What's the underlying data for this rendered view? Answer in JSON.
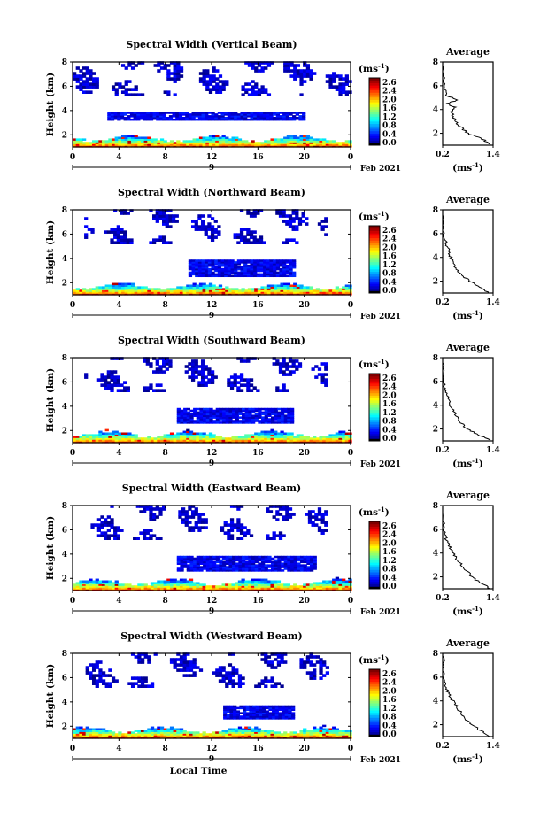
{
  "chart_data": [
    {
      "type": "heatmap",
      "title": "Spectral Width (Vertical Beam)",
      "ylabel": "Height (km)",
      "x_ticks": [
        "0",
        "4",
        "8",
        "12",
        "16",
        "20",
        "0"
      ],
      "day_label": "9",
      "date_label": "Feb 2021",
      "xlim": [
        0,
        24
      ],
      "ylim": [
        1,
        8
      ],
      "y_ticks": [
        "2",
        "4",
        "6",
        "8"
      ],
      "colorbar": {
        "unit": "(ms",
        "unit_exp": "-1",
        "unit_close": ")",
        "ticks": [
          "2.6",
          "2.4",
          "2.0",
          "1.6",
          "1.2",
          "0.8",
          "0.4",
          "0.0"
        ],
        "range": [
          0.0,
          2.8
        ]
      },
      "layers": [
        {
          "y": [
            1.0,
            2.0
          ],
          "x": [
            0,
            24
          ],
          "level": 1.2
        },
        {
          "y": [
            3.2,
            3.8
          ],
          "x": [
            3,
            20
          ],
          "level": 0.3
        },
        {
          "y": [
            5.2,
            7.9
          ],
          "x": [
            0,
            24
          ],
          "level": 0.2,
          "sparse": true
        }
      ],
      "average": {
        "title": "Average",
        "xlabel": "(ms",
        "xlabel_exp": "-1",
        "xlabel_close": ")",
        "x_ticks": [
          "0.2",
          "1.4"
        ],
        "y_ticks": [
          "2",
          "4",
          "6",
          "8"
        ],
        "xlim": [
          0.2,
          1.4
        ],
        "ylim": [
          1,
          8
        ],
        "profile": [
          [
            1.0,
            1.35
          ],
          [
            1.5,
            1.15
          ],
          [
            2.0,
            0.8
          ],
          [
            2.6,
            0.6
          ],
          [
            3.2,
            0.48
          ],
          [
            3.8,
            0.42
          ],
          [
            4.2,
            0.5
          ],
          [
            4.5,
            0.3
          ],
          [
            4.8,
            0.55
          ],
          [
            5.2,
            0.28
          ],
          [
            6.0,
            0.24
          ],
          [
            7.0,
            0.22
          ],
          [
            7.8,
            0.2
          ]
        ]
      }
    },
    {
      "type": "heatmap",
      "title": "Spectral Width (Northward Beam)",
      "ylabel": "Height (km)",
      "x_ticks": [
        "0",
        "4",
        "8",
        "12",
        "16",
        "20",
        "0"
      ],
      "day_label": "9",
      "date_label": "Feb 2021",
      "xlim": [
        0,
        24
      ],
      "ylim": [
        1,
        8
      ],
      "y_ticks": [
        "2",
        "4",
        "6",
        "8"
      ],
      "colorbar": {
        "unit": "(ms",
        "unit_exp": "-1",
        "unit_close": ")",
        "ticks": [
          "2.6",
          "2.4",
          "2.0",
          "1.6",
          "1.2",
          "0.8",
          "0.4",
          "0.0"
        ],
        "range": [
          0.0,
          2.8
        ]
      },
      "layers": [
        {
          "y": [
            1.0,
            2.0
          ],
          "x": [
            0,
            24
          ],
          "level": 1.2
        },
        {
          "y": [
            2.5,
            3.8
          ],
          "x": [
            10,
            19
          ],
          "level": 0.3
        },
        {
          "y": [
            5.2,
            7.9
          ],
          "x": [
            1,
            22
          ],
          "level": 0.2,
          "sparse": true
        }
      ],
      "average": {
        "title": "Average",
        "xlabel": "(ms",
        "xlabel_exp": "-1",
        "xlabel_close": ")",
        "x_ticks": [
          "0.2",
          "1.4"
        ],
        "y_ticks": [
          "2",
          "4",
          "6",
          "8"
        ],
        "xlim": [
          0.2,
          1.4
        ],
        "ylim": [
          1,
          8
        ],
        "profile": [
          [
            1.0,
            1.3
          ],
          [
            1.5,
            1.1
          ],
          [
            2.0,
            0.85
          ],
          [
            2.6,
            0.62
          ],
          [
            3.2,
            0.5
          ],
          [
            3.8,
            0.42
          ],
          [
            4.4,
            0.35
          ],
          [
            5.0,
            0.3
          ],
          [
            5.6,
            0.24
          ],
          [
            6.5,
            0.22
          ],
          [
            7.8,
            0.2
          ]
        ]
      }
    },
    {
      "type": "heatmap",
      "title": "Spectral Width (Southward Beam)",
      "ylabel": "Height (km)",
      "x_ticks": [
        "0",
        "4",
        "8",
        "12",
        "16",
        "20",
        "0"
      ],
      "day_label": "9",
      "date_label": "Feb 2021",
      "xlim": [
        0,
        24
      ],
      "ylim": [
        1,
        8
      ],
      "y_ticks": [
        "2",
        "4",
        "6",
        "8"
      ],
      "colorbar": {
        "unit": "(ms",
        "unit_exp": "-1",
        "unit_close": ")",
        "ticks": [
          "2.6",
          "2.4",
          "2.0",
          "1.6",
          "1.2",
          "0.8",
          "0.4",
          "0.0"
        ],
        "range": [
          0.0,
          2.8
        ]
      },
      "layers": [
        {
          "y": [
            1.0,
            2.0
          ],
          "x": [
            0,
            24
          ],
          "level": 1.2
        },
        {
          "y": [
            2.6,
            3.8
          ],
          "x": [
            9,
            19
          ],
          "level": 0.3
        },
        {
          "y": [
            5.2,
            7.9
          ],
          "x": [
            1,
            22
          ],
          "level": 0.2,
          "sparse": true
        }
      ],
      "average": {
        "title": "Average",
        "xlabel": "(ms",
        "xlabel_exp": "-1",
        "xlabel_close": ")",
        "x_ticks": [
          "0.2",
          "1.4"
        ],
        "y_ticks": [
          "2",
          "4",
          "6",
          "8"
        ],
        "xlim": [
          0.2,
          1.4
        ],
        "ylim": [
          1,
          8
        ],
        "profile": [
          [
            1.0,
            1.35
          ],
          [
            1.5,
            1.05
          ],
          [
            2.0,
            0.8
          ],
          [
            2.6,
            0.6
          ],
          [
            3.2,
            0.5
          ],
          [
            3.8,
            0.4
          ],
          [
            4.4,
            0.35
          ],
          [
            5.0,
            0.28
          ],
          [
            5.6,
            0.24
          ],
          [
            6.5,
            0.22
          ],
          [
            7.8,
            0.2
          ]
        ]
      }
    },
    {
      "type": "heatmap",
      "title": "Spectral Width (Eastward Beam)",
      "ylabel": "Height (km)",
      "x_ticks": [
        "0",
        "4",
        "8",
        "12",
        "16",
        "20",
        "0"
      ],
      "day_label": "9",
      "date_label": "Feb 2021",
      "xlim": [
        0,
        24
      ],
      "ylim": [
        1,
        8
      ],
      "y_ticks": [
        "2",
        "4",
        "6",
        "8"
      ],
      "colorbar": {
        "unit": "(ms",
        "unit_exp": "-1",
        "unit_close": ")",
        "ticks": [
          "2.6",
          "2.4",
          "2.0",
          "1.6",
          "1.2",
          "0.8",
          "0.4",
          "0.0"
        ],
        "range": [
          0.0,
          2.8
        ]
      },
      "layers": [
        {
          "y": [
            1.0,
            2.0
          ],
          "x": [
            0,
            24
          ],
          "level": 1.2
        },
        {
          "y": [
            2.6,
            3.8
          ],
          "x": [
            9,
            21
          ],
          "level": 0.3
        },
        {
          "y": [
            5.2,
            7.9
          ],
          "x": [
            1,
            22
          ],
          "level": 0.2,
          "sparse": true
        }
      ],
      "average": {
        "title": "Average",
        "xlabel": "(ms",
        "xlabel_exp": "-1",
        "xlabel_close": ")",
        "x_ticks": [
          "0.2",
          "1.4"
        ],
        "y_ticks": [
          "2",
          "4",
          "6",
          "8"
        ],
        "xlim": [
          0.2,
          1.4
        ],
        "ylim": [
          1,
          8
        ],
        "profile": [
          [
            1.0,
            1.35
          ],
          [
            1.5,
            1.1
          ],
          [
            2.0,
            0.9
          ],
          [
            2.6,
            0.75
          ],
          [
            3.2,
            0.6
          ],
          [
            3.8,
            0.48
          ],
          [
            4.4,
            0.38
          ],
          [
            5.0,
            0.3
          ],
          [
            5.6,
            0.25
          ],
          [
            6.5,
            0.22
          ],
          [
            7.8,
            0.2
          ]
        ]
      }
    },
    {
      "type": "heatmap",
      "title": "Spectral Width (Westward Beam)",
      "ylabel": "Height (km)",
      "x_ticks": [
        "0",
        "4",
        "8",
        "12",
        "16",
        "20",
        "0"
      ],
      "day_label": "9",
      "date_label": "Feb 2021",
      "xlabel": "Local Time",
      "xlim": [
        0,
        24
      ],
      "ylim": [
        1,
        8
      ],
      "y_ticks": [
        "2",
        "4",
        "6",
        "8"
      ],
      "colorbar": {
        "unit": "(ms",
        "unit_exp": "-1",
        "unit_close": ")",
        "ticks": [
          "2.6",
          "2.4",
          "2.0",
          "1.6",
          "1.2",
          "0.8",
          "0.4",
          "0.0"
        ],
        "range": [
          0.0,
          2.8
        ]
      },
      "layers": [
        {
          "y": [
            1.0,
            2.0
          ],
          "x": [
            0,
            24
          ],
          "level": 1.2
        },
        {
          "y": [
            2.6,
            3.6
          ],
          "x": [
            13,
            19
          ],
          "level": 0.3
        },
        {
          "y": [
            5.2,
            7.9
          ],
          "x": [
            0,
            22
          ],
          "level": 0.2,
          "sparse": true
        }
      ],
      "average": {
        "title": "Average",
        "xlabel": "(ms",
        "xlabel_exp": "-1",
        "xlabel_close": ")",
        "x_ticks": [
          "0.2",
          "1.4"
        ],
        "y_ticks": [
          "2",
          "4",
          "6",
          "8"
        ],
        "xlim": [
          0.2,
          1.4
        ],
        "ylim": [
          1,
          8
        ],
        "profile": [
          [
            1.0,
            1.35
          ],
          [
            1.5,
            1.1
          ],
          [
            2.0,
            0.9
          ],
          [
            2.6,
            0.72
          ],
          [
            3.2,
            0.6
          ],
          [
            3.8,
            0.48
          ],
          [
            4.4,
            0.38
          ],
          [
            5.0,
            0.3
          ],
          [
            5.6,
            0.26
          ],
          [
            6.5,
            0.22
          ],
          [
            7.8,
            0.2
          ]
        ]
      }
    }
  ]
}
